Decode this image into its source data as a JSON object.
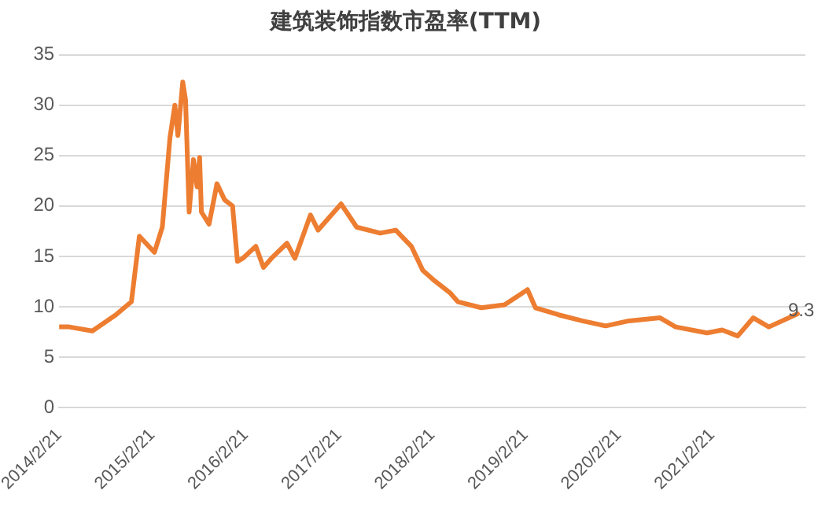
{
  "chart_data": {
    "type": "line",
    "title": "建筑装饰指数市盈率(TTM)",
    "x": [
      "2014-02-21",
      "2014-04-01",
      "2014-07-01",
      "2014-10-01",
      "2014-12-01",
      "2015-01-01",
      "2015-03-01",
      "2015-04-01",
      "2015-05-01",
      "2015-05-20",
      "2015-06-01",
      "2015-06-20",
      "2015-07-01",
      "2015-07-15",
      "2015-08-01",
      "2015-08-15",
      "2015-08-25",
      "2015-09-01",
      "2015-10-01",
      "2015-11-01",
      "2015-12-01",
      "2016-01-01",
      "2016-01-20",
      "2016-02-10",
      "2016-04-01",
      "2016-05-01",
      "2016-06-01",
      "2016-08-01",
      "2016-09-01",
      "2016-11-01",
      "2016-12-01",
      "2017-03-01",
      "2017-05-01",
      "2017-08-01",
      "2017-10-01",
      "2017-12-01",
      "2018-01-15",
      "2018-03-01",
      "2018-05-01",
      "2018-06-01",
      "2018-09-01",
      "2018-12-01",
      "2019-03-01",
      "2019-04-01",
      "2019-07-01",
      "2019-10-01",
      "2020-01-01",
      "2020-04-01",
      "2020-08-01",
      "2020-10-01",
      "2021-02-01",
      "2021-04-01",
      "2021-06-01",
      "2021-08-01",
      "2021-10-01",
      "2022-01-21"
    ],
    "series": [
      {
        "color": "#ed7d31",
        "values": [
          8.0,
          8.0,
          7.6,
          9.2,
          10.5,
          17.0,
          15.4,
          17.9,
          26.8,
          30.0,
          27.0,
          32.3,
          30.5,
          19.4,
          24.6,
          21.9,
          24.8,
          19.4,
          18.2,
          22.2,
          20.6,
          20.0,
          14.5,
          14.8,
          16.0,
          13.9,
          14.8,
          16.3,
          14.8,
          19.1,
          17.6,
          20.2,
          17.9,
          17.3,
          17.6,
          16.0,
          13.6,
          12.6,
          11.4,
          10.5,
          9.9,
          10.2,
          11.7,
          9.9,
          9.2,
          8.6,
          8.1,
          8.6,
          8.9,
          8.0,
          7.4,
          7.7,
          7.1,
          8.9,
          8.0,
          9.3
        ]
      }
    ],
    "xlim": [
      "2014-02-21",
      "2022-02-21"
    ],
    "xticks": [
      {
        "value": "2014-02-21",
        "label": "2014/2/21"
      },
      {
        "value": "2015-02-21",
        "label": "2015/2/21"
      },
      {
        "value": "2016-02-21",
        "label": "2016/2/21"
      },
      {
        "value": "2017-02-21",
        "label": "2017/2/21"
      },
      {
        "value": "2018-02-21",
        "label": "2018/2/21"
      },
      {
        "value": "2019-02-21",
        "label": "2019/2/21"
      },
      {
        "value": "2020-02-21",
        "label": "2020/2/21"
      },
      {
        "value": "2021-02-21",
        "label": "2021/2/21"
      }
    ],
    "ylim": [
      0,
      35
    ],
    "yticks": [
      0,
      5,
      10,
      15,
      20,
      25,
      30,
      35
    ],
    "grid": "y",
    "legend": false,
    "marker": "none",
    "line_style": "solid",
    "annotations": [
      {
        "text": "9.3",
        "x": "2022-01-21",
        "y": 9.3
      }
    ]
  }
}
